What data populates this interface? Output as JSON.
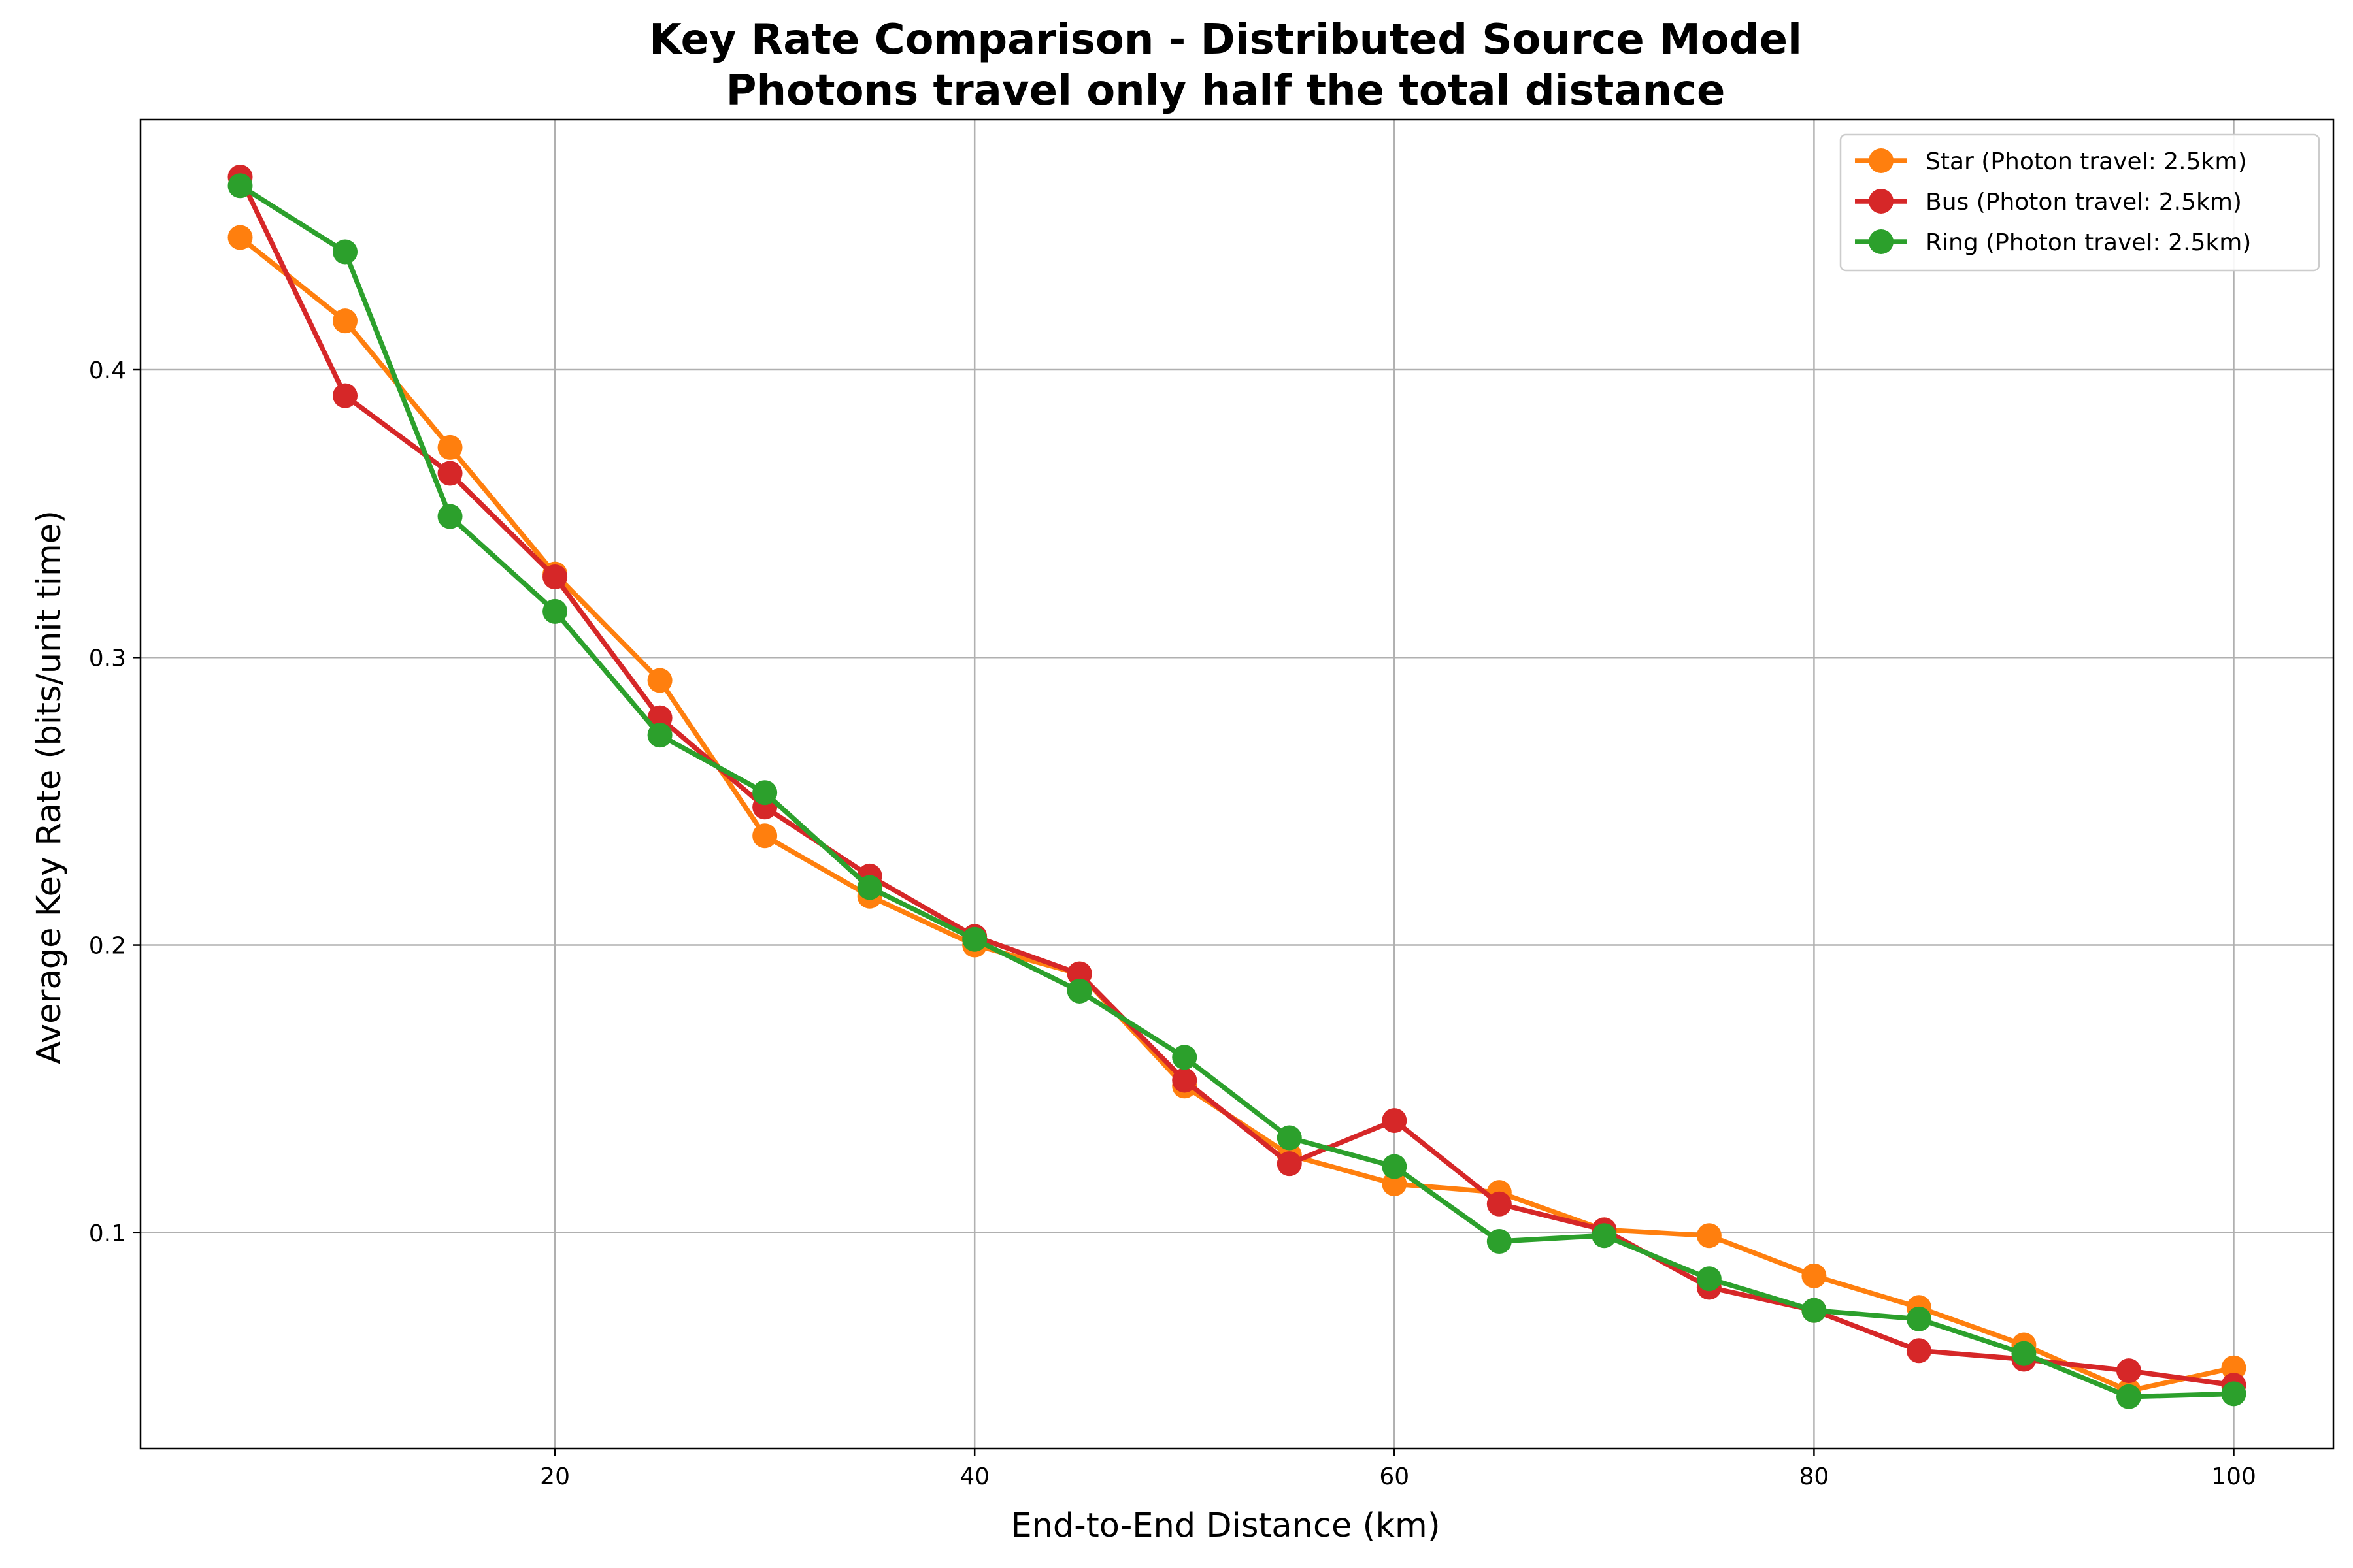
{
  "chart_data": {
    "type": "line",
    "title_lines": [
      "Key Rate Comparison - Distributed Source Model",
      "Photons travel only half the total distance"
    ],
    "xlabel": "End-to-End Distance (km)",
    "ylabel": "Average Key Rate (bits/unit time)",
    "xlim": [
      0.25,
      104.75
    ],
    "ylim": [
      0.025,
      0.487
    ],
    "xticks": [
      20,
      40,
      60,
      80,
      100
    ],
    "yticks": [
      0.1,
      0.2,
      0.3,
      0.4
    ],
    "grid": true,
    "legend_position": "top-right",
    "x": [
      5,
      10,
      15,
      20,
      25,
      30,
      35,
      40,
      45,
      50,
      55,
      60,
      65,
      70,
      75,
      80,
      85,
      90,
      95,
      100
    ],
    "series": [
      {
        "name": "Star (Photon travel: 2.5km)",
        "color": "#ff7f0e",
        "values": [
          0.446,
          0.417,
          0.373,
          0.329,
          0.292,
          0.238,
          0.217,
          0.2,
          0.19,
          0.151,
          0.127,
          0.117,
          0.114,
          0.101,
          0.099,
          0.085,
          0.074,
          0.061,
          0.045,
          0.053
        ]
      },
      {
        "name": "Bus (Photon travel: 2.5km)",
        "color": "#d62728",
        "values": [
          0.467,
          0.391,
          0.364,
          0.328,
          0.279,
          0.248,
          0.224,
          0.203,
          0.19,
          0.153,
          0.124,
          0.139,
          0.11,
          0.101,
          0.081,
          0.073,
          0.059,
          0.056,
          0.052,
          0.047
        ]
      },
      {
        "name": "Ring (Photon travel: 2.5km)",
        "color": "#2ca02c",
        "values": [
          0.464,
          0.441,
          0.349,
          0.316,
          0.273,
          0.253,
          0.22,
          0.202,
          0.184,
          0.161,
          0.133,
          0.123,
          0.097,
          0.099,
          0.084,
          0.073,
          0.07,
          0.058,
          0.043,
          0.044
        ]
      }
    ]
  }
}
